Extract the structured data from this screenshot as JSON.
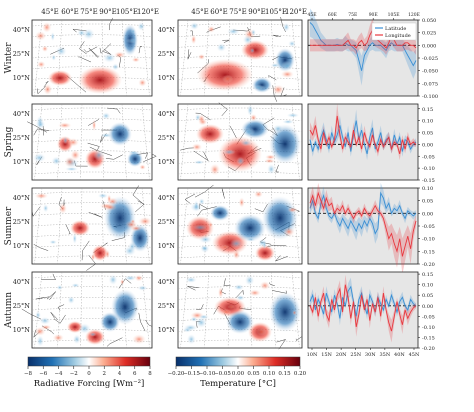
{
  "figure": {
    "season_labels": [
      "Winter",
      "Spring",
      "Summer",
      "Autumn"
    ],
    "map_lon_labels": [
      "45°E",
      "60°E",
      "75°E",
      "90°E",
      "105°E",
      "120°E"
    ],
    "map_lat_labels": [
      "40°N",
      "25°N",
      "10°N"
    ],
    "colorbar_radiative": {
      "label": "Radiative Forcing [Wm⁻²]",
      "ticks": [
        "−8",
        "−6",
        "−4",
        "−2",
        "0",
        "2",
        "4",
        "6",
        "8"
      ]
    },
    "colorbar_temperature": {
      "label": "Temperature [°C]",
      "ticks": [
        "−0.20",
        "−0.15",
        "−0.10",
        "−0.05",
        "0.00",
        "0.05",
        "0.10",
        "0.15",
        "0.20"
      ]
    },
    "colors": {
      "latitude": "#3a8fd4",
      "longitude": "#e8383f",
      "warm": "#c8102e",
      "cool": "#1f5aa6",
      "panel_bg": "#e6e6e6"
    }
  },
  "chart_data": [
    {
      "type": "line",
      "panel": "Winter",
      "legend": [
        "Latitude",
        "Longitude"
      ],
      "legend_position": "top-right",
      "top_ticks": [
        "45E",
        "60E",
        "75E",
        "90E",
        "105E",
        "120E"
      ],
      "bottom_ticks": [
        "10N",
        "15N",
        "20N",
        "25N",
        "30N",
        "35N",
        "40N",
        "45N"
      ],
      "y_ticks": [
        "0.050",
        "0.025",
        "0.000",
        "-0.025",
        "-0.050",
        "-0.075",
        "-0.100"
      ],
      "ylim": [
        -0.1,
        0.05
      ],
      "series": [
        {
          "name": "Latitude",
          "values": [
            0.045,
            0.04,
            0.03,
            0.02,
            0.01,
            0.005,
            0,
            0,
            0,
            0,
            0.002,
            0,
            0,
            0.005,
            0,
            0,
            -0.005,
            -0.01,
            -0.03,
            -0.05,
            -0.02,
            -0.01,
            0,
            0.005,
            0,
            0,
            0,
            -0.005,
            -0.01,
            0,
            0.005,
            0,
            0,
            0,
            0,
            -0.01,
            -0.02,
            -0.03,
            -0.04,
            -0.03
          ]
        },
        {
          "name": "Longitude",
          "values": [
            0,
            0,
            0,
            0,
            0,
            0,
            0,
            0,
            0,
            0,
            0,
            0,
            0,
            0.005,
            0.01,
            0,
            0,
            -0.005,
            0.005,
            0.01,
            0,
            0.005,
            0.02,
            0.03,
            0.015,
            0.01,
            0.005,
            0,
            -0.005,
            0.005,
            0.02,
            0.01,
            0,
            0,
            0,
            0.005,
            0.005,
            0,
            0,
            -0.005
          ]
        }
      ]
    },
    {
      "type": "line",
      "panel": "Spring",
      "y_ticks": [
        "0.15",
        "0.10",
        "0.05",
        "0.00",
        "-0.05",
        "-0.10",
        "-0.15"
      ],
      "ylim": [
        -0.15,
        0.17
      ],
      "series": [
        {
          "name": "Latitude",
          "values": [
            0.02,
            -0.03,
            0.01,
            -0.02,
            0.03,
            0.06,
            0.02,
            -0.02,
            0.05,
            0.01,
            0.04,
            0.08,
            0.03,
            -0.01,
            0.05,
            -0.03,
            0.04,
            0.1,
            0.02,
            0.06,
            0,
            -0.04,
            0.03,
            0.07,
            -0.02,
            0.01,
            0.05,
            -0.01,
            0.02,
            0.03,
            -0.02,
            0.04,
            0,
            0.03,
            -0.03,
            0.02,
            0.01,
            -0.02,
            0,
            0.01
          ]
        },
        {
          "name": "Longitude",
          "values": [
            0.06,
            0.04,
            0.08,
            0.02,
            -0.02,
            0.05,
            0,
            0.03,
            -0.01,
            0.02,
            0.12,
            0.04,
            -0.02,
            0.03,
            0.01,
            -0.01,
            0.06,
            0,
            0.03,
            -0.02,
            0.05,
            0.01,
            -0.01,
            0.04,
            0,
            -0.03,
            0.02,
            -0.01,
            0.01,
            0.03,
            -0.02,
            0.01,
            0,
            -0.04,
            0.02,
            -0.02,
            0.03,
            0,
            0.01,
            0
          ]
        }
      ]
    },
    {
      "type": "line",
      "panel": "Summer",
      "y_ticks": [
        "0.10",
        "0.05",
        "0.00",
        "-0.05",
        "-0.10",
        "-0.15",
        "-0.20"
      ],
      "ylim": [
        -0.2,
        0.1
      ],
      "series": [
        {
          "name": "Latitude",
          "values": [
            0.02,
            0.05,
            0,
            -0.02,
            0.04,
            0.07,
            0.02,
            -0.01,
            -0.02,
            0,
            -0.03,
            -0.05,
            -0.02,
            -0.04,
            -0.06,
            -0.03,
            -0.05,
            -0.07,
            -0.04,
            -0.06,
            -0.03,
            -0.05,
            -0.02,
            -0.04,
            -0.08,
            -0.06,
            0.08,
            0.06,
            0.02,
            0.04,
            0,
            0.02,
            0.01,
            0.03,
            0,
            -0.02,
            0.01,
            0,
            -0.01,
            0
          ]
        },
        {
          "name": "Longitude",
          "values": [
            0.04,
            0.07,
            0.03,
            0.08,
            0.05,
            0.02,
            0.06,
            0.03,
            0.04,
            0,
            0.02,
            0.01,
            0.03,
            0,
            0.02,
            0,
            -0.02,
            0,
            0.01,
            -0.01,
            0.02,
            0,
            -0.01,
            0.01,
            0.03,
            0.01,
            0,
            -0.02,
            -0.06,
            -0.1,
            -0.08,
            -0.12,
            -0.15,
            -0.1,
            -0.17,
            -0.13,
            -0.09,
            -0.14,
            -0.07,
            -0.03
          ]
        }
      ]
    },
    {
      "type": "line",
      "panel": "Autumn",
      "y_ticks": [
        "0.15",
        "0.10",
        "0.05",
        "0.00",
        "-0.05",
        "-0.10",
        "-0.15",
        "-0.20"
      ],
      "ylim": [
        -0.2,
        0.16
      ],
      "series": [
        {
          "name": "Latitude",
          "values": [
            0.02,
            0.05,
            -0.02,
            0.03,
            0,
            -0.04,
            0.06,
            0.02,
            -0.03,
            0.05,
            0.01,
            -0.06,
            0.04,
            0,
            0.07,
            0.09,
            0.02,
            -0.05,
            0.03,
            0.06,
            0,
            -0.04,
            0.05,
            0.02,
            -0.03,
            0.04,
            0.01,
            -0.02,
            0.03,
            0,
            0.05,
            0.01,
            -0.03,
            0.02,
            0.04,
            0,
            -0.02,
            0.03,
            0.01,
            0
          ]
        },
        {
          "name": "Longitude",
          "values": [
            0,
            -0.03,
            0.04,
            -0.05,
            0.02,
            0.06,
            -0.04,
            -0.07,
            0.03,
            -0.02,
            0.05,
            0.08,
            -0.03,
            0.1,
            0.04,
            -0.06,
            0.02,
            -0.1,
            -0.04,
            0.05,
            -0.02,
            0.03,
            -0.07,
            0.01,
            -0.03,
            0.04,
            -0.05,
            0.06,
            -0.02,
            -0.08,
            -0.12,
            -0.05,
            0.02,
            -0.04,
            -0.09,
            -0.02,
            -0.06,
            -0.03,
            -0.01,
            0
          ]
        }
      ]
    }
  ]
}
